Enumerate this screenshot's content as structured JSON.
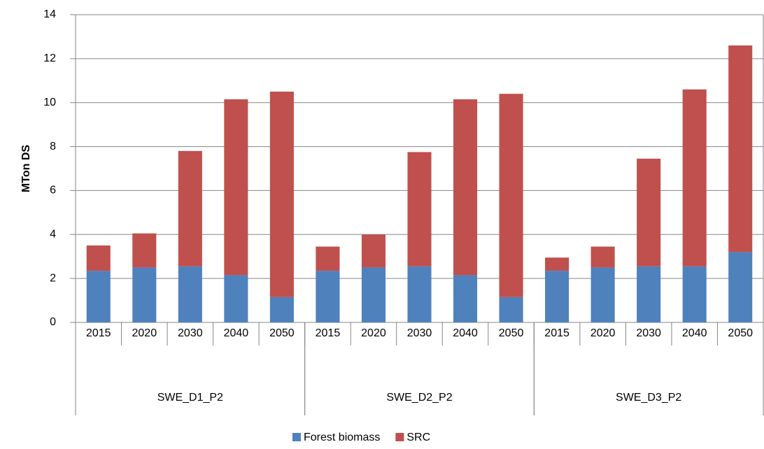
{
  "chart_data": {
    "type": "stacked_bar",
    "y_label": "MTon DS",
    "categories": [
      "2015",
      "2020",
      "2030",
      "2040",
      "2050",
      "2015",
      "2020",
      "2030",
      "2040",
      "2050",
      "2015",
      "2020",
      "2030",
      "2040",
      "2050"
    ],
    "groups": [
      "SWE_D1_P2",
      "SWE_D2_P2",
      "SWE_D3_P2"
    ],
    "series": [
      {
        "name": "Forest biomass",
        "color": "#4f81bd",
        "values": [
          2.35,
          2.5,
          2.55,
          2.15,
          1.15,
          2.35,
          2.5,
          2.55,
          2.15,
          1.15,
          2.35,
          2.5,
          2.55,
          2.55,
          3.2
        ]
      },
      {
        "name": "SRC",
        "color": "#c0504d",
        "values": [
          1.15,
          1.55,
          5.25,
          8.0,
          9.35,
          1.1,
          1.5,
          5.2,
          8.0,
          9.25,
          0.6,
          0.95,
          4.9,
          8.05,
          9.4
        ]
      }
    ],
    "ylim": [
      0,
      14
    ],
    "yticks": [
      0,
      2,
      4,
      6,
      8,
      10,
      12,
      14
    ],
    "grid": true,
    "legend": "bottom"
  }
}
